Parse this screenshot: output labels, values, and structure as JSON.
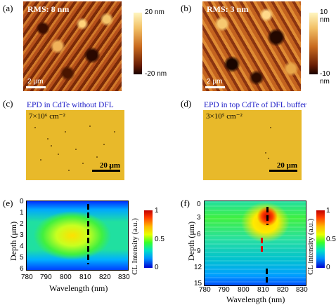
{
  "panels": {
    "a": {
      "label": "(a)",
      "rms": "RMS: 8 nm",
      "scale": "2 μm",
      "cbar_max": "20 nm",
      "cbar_min": "-20 nm"
    },
    "b": {
      "label": "(b)",
      "rms": "RMS: 3 nm",
      "scale": "2 μm",
      "cbar_max": "10 nm",
      "cbar_min": "-10 nm"
    },
    "c": {
      "label": "(c)",
      "caption": "EPD in CdTe without DFL",
      "density": "7×10⁶ cm⁻²",
      "scale": "20 μm"
    },
    "d": {
      "label": "(d)",
      "caption": "EPD in top CdTe of DFL buffer",
      "density": "3×10⁵ cm⁻²",
      "scale": "20 μm"
    },
    "e": {
      "label": "(e)",
      "xlabel": "Wavelength (nm)",
      "ylabel": "Depth (μm)",
      "cbar_label": "CL Intensity (a.u.)",
      "xticks": [
        "780",
        "790",
        "800",
        "810",
        "820",
        "830"
      ],
      "yticks": [
        "0",
        "1",
        "2",
        "3",
        "4",
        "5",
        "6"
      ],
      "cbar_ticks": [
        "1",
        "0.5",
        "0"
      ]
    },
    "f": {
      "label": "(f)",
      "xlabel": "Wavelength (nm)",
      "ylabel": "Depth (μm)",
      "cbar_label": "CL intensity (a.u.)",
      "xticks": [
        "780",
        "790",
        "800",
        "810",
        "820",
        "830"
      ],
      "yticks": [
        "0",
        "3",
        "6",
        "9",
        "12",
        "15"
      ],
      "cbar_ticks": [
        "1",
        "0.5",
        "0"
      ]
    }
  }
}
